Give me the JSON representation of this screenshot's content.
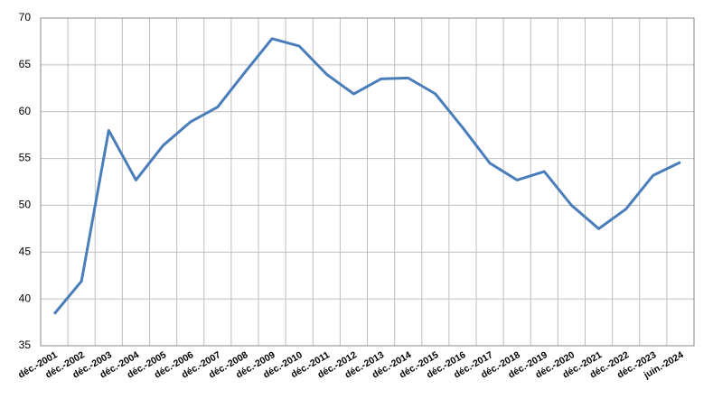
{
  "chart_data": {
    "type": "line",
    "categories": [
      "déc.-2001",
      "déc.-2002",
      "déc.-2003",
      "déc.-2004",
      "déc.-2005",
      "déc.-2006",
      "déc.-2007",
      "déc.-2008",
      "déc.-2009",
      "déc.-2010",
      "déc.-2011",
      "déc.-2012",
      "déc.-2013",
      "déc.-2014",
      "déc.-2015",
      "déc.-2016",
      "déc.-2017",
      "déc.-2018",
      "déc.-2019",
      "déc.-2020",
      "déc.-2021",
      "déc.-2022",
      "déc.-2023",
      "juin.-2024"
    ],
    "values": [
      38.4,
      41.9,
      58,
      52.7,
      56.4,
      58.9,
      60.5,
      64.2,
      67.8,
      67,
      64,
      61.9,
      63.5,
      63.6,
      61.9,
      58.3,
      54.5,
      52.7,
      53.6,
      50,
      47.5,
      49.6,
      53.2,
      54.6
    ],
    "color": "#4a7ebb",
    "ylim": [
      35,
      70
    ],
    "yticks": [
      35,
      40,
      45,
      50,
      55,
      60,
      65,
      70
    ],
    "grid": true
  }
}
